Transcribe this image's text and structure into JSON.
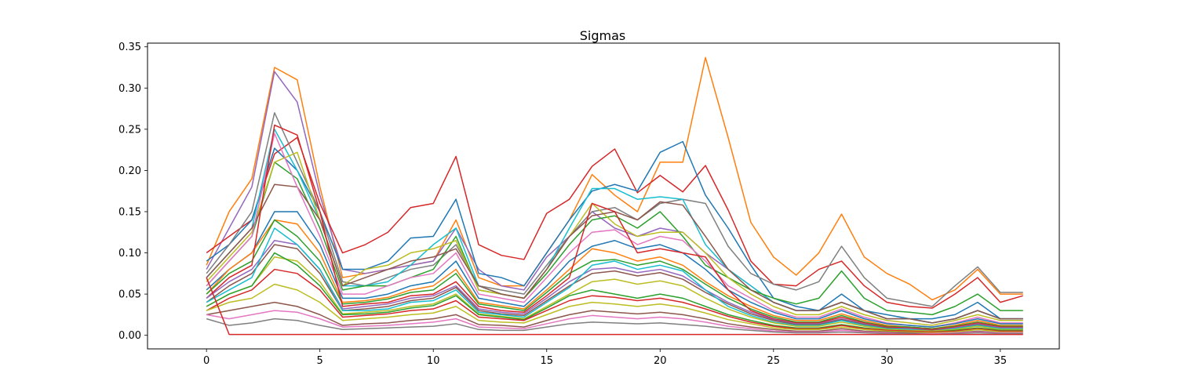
{
  "chart_data": {
    "type": "line",
    "title": "Sigmas",
    "xlabel": "",
    "ylabel": "",
    "xlim": [
      -2.6,
      37.6
    ],
    "ylim": [
      -0.0165,
      0.3545
    ],
    "x_ticks": [
      0,
      5,
      10,
      15,
      20,
      25,
      30,
      35
    ],
    "y_ticks": [
      0.0,
      0.05,
      0.1,
      0.15,
      0.2,
      0.25,
      0.3,
      0.35
    ],
    "y_tick_labels": [
      "0.00",
      "0.05",
      "0.10",
      "0.15",
      "0.20",
      "0.25",
      "0.30",
      "0.35"
    ],
    "x": [
      0,
      1,
      2,
      3,
      4,
      5,
      6,
      7,
      8,
      9,
      10,
      11,
      12,
      13,
      14,
      15,
      16,
      17,
      18,
      19,
      20,
      21,
      22,
      23,
      24,
      25,
      26,
      27,
      28,
      29,
      30,
      31,
      32,
      33,
      34,
      35,
      36
    ],
    "grid": false,
    "legend": "none",
    "series": [
      {
        "color": "#ff7f0e",
        "values": [
          0.085,
          0.15,
          0.19,
          0.325,
          0.31,
          0.18,
          0.07,
          0.075,
          0.08,
          0.085,
          0.09,
          0.14,
          0.07,
          0.06,
          0.06,
          0.1,
          0.14,
          0.195,
          0.17,
          0.15,
          0.21,
          0.21,
          0.337,
          0.24,
          0.137,
          0.095,
          0.073,
          0.1,
          0.147,
          0.095,
          0.075,
          0.062,
          0.043,
          0.055,
          0.08,
          0.05,
          0.05
        ]
      },
      {
        "color": "#9467bd",
        "values": [
          0.08,
          0.13,
          0.18,
          0.32,
          0.283,
          0.17,
          0.08,
          0.075,
          0.08,
          0.085,
          0.09,
          0.13,
          0.08,
          0.06,
          0.055,
          0.095,
          0.12,
          0.15,
          0.13,
          0.12,
          0.13,
          0.125,
          0.1,
          0.08,
          0.06,
          0.04,
          0.03,
          0.03,
          0.04,
          0.03,
          0.02,
          0.02,
          0.015,
          0.02,
          0.03,
          0.02,
          0.02
        ]
      },
      {
        "color": "#d62728",
        "values": [
          0.1,
          0.12,
          0.14,
          0.22,
          0.24,
          0.16,
          0.1,
          0.11,
          0.125,
          0.155,
          0.16,
          0.217,
          0.11,
          0.097,
          0.092,
          0.148,
          0.165,
          0.205,
          0.226,
          0.173,
          0.194,
          0.174,
          0.206,
          0.152,
          0.09,
          0.062,
          0.06,
          0.08,
          0.09,
          0.06,
          0.04,
          0.035,
          0.033,
          0.05,
          0.07,
          0.04,
          0.048
        ]
      },
      {
        "color": "#1f77b4",
        "values": [
          0.09,
          0.11,
          0.14,
          0.227,
          0.2,
          0.15,
          0.08,
          0.08,
          0.09,
          0.118,
          0.12,
          0.165,
          0.075,
          0.07,
          0.06,
          0.1,
          0.14,
          0.175,
          0.183,
          0.175,
          0.222,
          0.235,
          0.17,
          0.13,
          0.085,
          0.045,
          0.035,
          0.03,
          0.05,
          0.03,
          0.025,
          0.02,
          0.02,
          0.025,
          0.04,
          0.02,
          0.02
        ]
      },
      {
        "color": "#7f7f7f",
        "values": [
          0.075,
          0.11,
          0.15,
          0.27,
          0.21,
          0.15,
          0.065,
          0.06,
          0.07,
          0.08,
          0.085,
          0.11,
          0.06,
          0.055,
          0.05,
          0.085,
          0.12,
          0.15,
          0.155,
          0.14,
          0.16,
          0.165,
          0.16,
          0.108,
          0.075,
          0.062,
          0.055,
          0.065,
          0.108,
          0.07,
          0.045,
          0.04,
          0.035,
          0.06,
          0.083,
          0.052,
          0.052
        ]
      },
      {
        "color": "#17becf",
        "values": [
          0.07,
          0.1,
          0.13,
          0.25,
          0.2,
          0.14,
          0.06,
          0.06,
          0.065,
          0.085,
          0.11,
          0.13,
          0.06,
          0.05,
          0.045,
          0.08,
          0.13,
          0.178,
          0.178,
          0.165,
          0.168,
          0.165,
          0.11,
          0.08,
          0.06,
          0.04,
          0.03,
          0.03,
          0.04,
          0.03,
          0.02,
          0.02,
          0.015,
          0.02,
          0.03,
          0.02,
          0.02
        ]
      },
      {
        "color": "#2ca02c",
        "values": [
          0.06,
          0.09,
          0.12,
          0.21,
          0.19,
          0.13,
          0.055,
          0.06,
          0.06,
          0.07,
          0.08,
          0.12,
          0.055,
          0.05,
          0.045,
          0.075,
          0.11,
          0.14,
          0.145,
          0.13,
          0.15,
          0.12,
          0.085,
          0.07,
          0.055,
          0.045,
          0.038,
          0.045,
          0.078,
          0.045,
          0.03,
          0.028,
          0.025,
          0.035,
          0.05,
          0.03,
          0.03
        ]
      },
      {
        "color": "#bcbd22",
        "values": [
          0.065,
          0.095,
          0.125,
          0.21,
          0.222,
          0.14,
          0.06,
          0.08,
          0.085,
          0.1,
          0.105,
          0.115,
          0.055,
          0.05,
          0.045,
          0.08,
          0.12,
          0.16,
          0.135,
          0.12,
          0.125,
          0.125,
          0.1,
          0.07,
          0.05,
          0.035,
          0.025,
          0.025,
          0.035,
          0.025,
          0.018,
          0.015,
          0.012,
          0.018,
          0.025,
          0.018,
          0.018
        ]
      },
      {
        "color": "#8c564b",
        "values": [
          0.07,
          0.1,
          0.13,
          0.183,
          0.18,
          0.14,
          0.06,
          0.07,
          0.08,
          0.09,
          0.095,
          0.105,
          0.06,
          0.05,
          0.045,
          0.08,
          0.12,
          0.145,
          0.15,
          0.14,
          0.162,
          0.158,
          0.12,
          0.08,
          0.055,
          0.04,
          0.03,
          0.03,
          0.04,
          0.03,
          0.02,
          0.02,
          0.015,
          0.02,
          0.03,
          0.02,
          0.02
        ]
      },
      {
        "color": "#e377c2",
        "values": [
          0.06,
          0.09,
          0.12,
          0.245,
          0.18,
          0.12,
          0.05,
          0.05,
          0.06,
          0.07,
          0.075,
          0.1,
          0.05,
          0.045,
          0.04,
          0.07,
          0.1,
          0.125,
          0.128,
          0.11,
          0.12,
          0.115,
          0.09,
          0.06,
          0.045,
          0.03,
          0.022,
          0.022,
          0.032,
          0.022,
          0.015,
          0.012,
          0.01,
          0.015,
          0.022,
          0.015,
          0.015
        ]
      },
      {
        "color": "#1f77b4",
        "values": [
          0.055,
          0.08,
          0.1,
          0.15,
          0.15,
          0.11,
          0.045,
          0.045,
          0.05,
          0.06,
          0.065,
          0.09,
          0.045,
          0.04,
          0.035,
          0.06,
          0.09,
          0.108,
          0.115,
          0.105,
          0.11,
          0.1,
          0.08,
          0.055,
          0.04,
          0.028,
          0.02,
          0.02,
          0.03,
          0.02,
          0.014,
          0.012,
          0.01,
          0.014,
          0.02,
          0.014,
          0.014
        ]
      },
      {
        "color": "#ff7f0e",
        "values": [
          0.05,
          0.08,
          0.1,
          0.14,
          0.135,
          0.1,
          0.04,
          0.042,
          0.046,
          0.055,
          0.06,
          0.08,
          0.04,
          0.036,
          0.032,
          0.055,
          0.08,
          0.105,
          0.1,
          0.09,
          0.095,
          0.085,
          0.065,
          0.048,
          0.035,
          0.024,
          0.018,
          0.018,
          0.026,
          0.018,
          0.012,
          0.01,
          0.008,
          0.012,
          0.018,
          0.012,
          0.012
        ]
      },
      {
        "color": "#2ca02c",
        "values": [
          0.05,
          0.075,
          0.09,
          0.14,
          0.12,
          0.09,
          0.038,
          0.04,
          0.044,
          0.052,
          0.055,
          0.075,
          0.038,
          0.034,
          0.03,
          0.052,
          0.075,
          0.09,
          0.092,
          0.085,
          0.09,
          0.08,
          0.062,
          0.045,
          0.032,
          0.022,
          0.016,
          0.016,
          0.024,
          0.016,
          0.011,
          0.01,
          0.008,
          0.011,
          0.016,
          0.011,
          0.011
        ]
      },
      {
        "color": "#d62728",
        "values": [
          0.045,
          0.07,
          0.085,
          0.255,
          0.243,
          0.15,
          0.035,
          0.038,
          0.04,
          0.048,
          0.05,
          0.065,
          0.035,
          0.03,
          0.028,
          0.048,
          0.07,
          0.16,
          0.15,
          0.1,
          0.105,
          0.1,
          0.095,
          0.055,
          0.03,
          0.02,
          0.015,
          0.015,
          0.022,
          0.015,
          0.01,
          0.009,
          0.007,
          0.01,
          0.015,
          0.01,
          0.01
        ]
      },
      {
        "color": "#9467bd",
        "values": [
          0.045,
          0.065,
          0.08,
          0.115,
          0.11,
          0.08,
          0.032,
          0.035,
          0.038,
          0.045,
          0.048,
          0.06,
          0.032,
          0.028,
          0.026,
          0.045,
          0.065,
          0.08,
          0.082,
          0.076,
          0.08,
          0.072,
          0.055,
          0.04,
          0.028,
          0.019,
          0.014,
          0.014,
          0.02,
          0.014,
          0.009,
          0.008,
          0.006,
          0.009,
          0.014,
          0.009,
          0.009
        ]
      },
      {
        "color": "#8c564b",
        "values": [
          0.04,
          0.06,
          0.075,
          0.11,
          0.105,
          0.075,
          0.03,
          0.032,
          0.035,
          0.042,
          0.045,
          0.058,
          0.03,
          0.026,
          0.024,
          0.042,
          0.06,
          0.075,
          0.078,
          0.072,
          0.076,
          0.068,
          0.052,
          0.038,
          0.026,
          0.018,
          0.013,
          0.013,
          0.019,
          0.013,
          0.009,
          0.007,
          0.006,
          0.008,
          0.013,
          0.008,
          0.008
        ]
      },
      {
        "color": "#17becf",
        "values": [
          0.04,
          0.055,
          0.07,
          0.13,
          0.11,
          0.08,
          0.03,
          0.03,
          0.032,
          0.04,
          0.042,
          0.055,
          0.028,
          0.025,
          0.022,
          0.04,
          0.058,
          0.085,
          0.09,
          0.08,
          0.085,
          0.078,
          0.055,
          0.035,
          0.024,
          0.016,
          0.012,
          0.012,
          0.018,
          0.012,
          0.008,
          0.007,
          0.005,
          0.008,
          0.012,
          0.008,
          0.008
        ]
      },
      {
        "color": "#bcbd22",
        "values": [
          0.035,
          0.05,
          0.06,
          0.095,
          0.09,
          0.065,
          0.026,
          0.028,
          0.03,
          0.035,
          0.038,
          0.05,
          0.026,
          0.023,
          0.02,
          0.035,
          0.05,
          0.065,
          0.068,
          0.062,
          0.066,
          0.06,
          0.045,
          0.032,
          0.022,
          0.015,
          0.011,
          0.011,
          0.016,
          0.011,
          0.007,
          0.006,
          0.005,
          0.007,
          0.011,
          0.007,
          0.007
        ]
      },
      {
        "color": "#2ca02c",
        "values": [
          0.035,
          0.05,
          0.06,
          0.1,
          0.085,
          0.06,
          0.025,
          0.026,
          0.028,
          0.033,
          0.036,
          0.048,
          0.025,
          0.022,
          0.019,
          0.033,
          0.048,
          0.055,
          0.05,
          0.045,
          0.05,
          0.045,
          0.035,
          0.025,
          0.018,
          0.012,
          0.009,
          0.009,
          0.013,
          0.009,
          0.006,
          0.005,
          0.004,
          0.006,
          0.009,
          0.006,
          0.006
        ]
      },
      {
        "color": "#d62728",
        "values": [
          0.03,
          0.045,
          0.055,
          0.08,
          0.075,
          0.055,
          0.022,
          0.024,
          0.026,
          0.03,
          0.032,
          0.042,
          0.022,
          0.02,
          0.018,
          0.03,
          0.042,
          0.048,
          0.046,
          0.042,
          0.045,
          0.04,
          0.032,
          0.023,
          0.016,
          0.011,
          0.008,
          0.008,
          0.012,
          0.008,
          0.006,
          0.005,
          0.004,
          0.005,
          0.008,
          0.005,
          0.005
        ]
      },
      {
        "color": "#bcbd22",
        "values": [
          0.03,
          0.04,
          0.045,
          0.062,
          0.055,
          0.04,
          0.018,
          0.02,
          0.022,
          0.025,
          0.027,
          0.035,
          0.018,
          0.016,
          0.015,
          0.025,
          0.035,
          0.04,
          0.038,
          0.035,
          0.038,
          0.034,
          0.027,
          0.019,
          0.014,
          0.009,
          0.007,
          0.007,
          0.01,
          0.007,
          0.005,
          0.004,
          0.003,
          0.004,
          0.007,
          0.004,
          0.004
        ]
      },
      {
        "color": "#8c564b",
        "values": [
          0.025,
          0.03,
          0.035,
          0.04,
          0.035,
          0.025,
          0.012,
          0.014,
          0.015,
          0.018,
          0.02,
          0.025,
          0.013,
          0.012,
          0.01,
          0.018,
          0.025,
          0.03,
          0.028,
          0.026,
          0.028,
          0.025,
          0.02,
          0.014,
          0.01,
          0.007,
          0.005,
          0.005,
          0.008,
          0.005,
          0.004,
          0.003,
          0.002,
          0.003,
          0.005,
          0.003,
          0.003
        ]
      },
      {
        "color": "#e377c2",
        "values": [
          0.025,
          0.02,
          0.025,
          0.03,
          0.028,
          0.02,
          0.01,
          0.011,
          0.012,
          0.014,
          0.016,
          0.02,
          0.01,
          0.009,
          0.008,
          0.014,
          0.02,
          0.024,
          0.022,
          0.02,
          0.022,
          0.02,
          0.016,
          0.011,
          0.008,
          0.005,
          0.004,
          0.004,
          0.006,
          0.004,
          0.003,
          0.002,
          0.002,
          0.003,
          0.004,
          0.003,
          0.003
        ]
      },
      {
        "color": "#7f7f7f",
        "values": [
          0.02,
          0.012,
          0.015,
          0.02,
          0.018,
          0.012,
          0.007,
          0.008,
          0.009,
          0.01,
          0.011,
          0.014,
          0.007,
          0.006,
          0.006,
          0.01,
          0.014,
          0.016,
          0.015,
          0.014,
          0.015,
          0.013,
          0.011,
          0.008,
          0.006,
          0.004,
          0.003,
          0.003,
          0.004,
          0.003,
          0.002,
          0.002,
          0.001,
          0.002,
          0.003,
          0.002,
          0.002
        ]
      },
      {
        "color": "#d62728",
        "values": [
          0.07,
          0.001,
          0.001,
          0.001,
          0.001,
          0.001,
          0.001,
          0.001,
          0.001,
          0.001,
          0.001,
          0.001,
          0.001,
          0.001,
          0.001,
          0.001,
          0.001,
          0.001,
          0.001,
          0.001,
          0.001,
          0.001,
          0.001,
          0.001,
          0.001,
          0.001,
          0.001,
          0.001,
          0.001,
          0.001,
          0.001,
          0.001,
          0.001,
          0.001,
          0.001,
          0.001,
          0.001
        ]
      }
    ]
  }
}
